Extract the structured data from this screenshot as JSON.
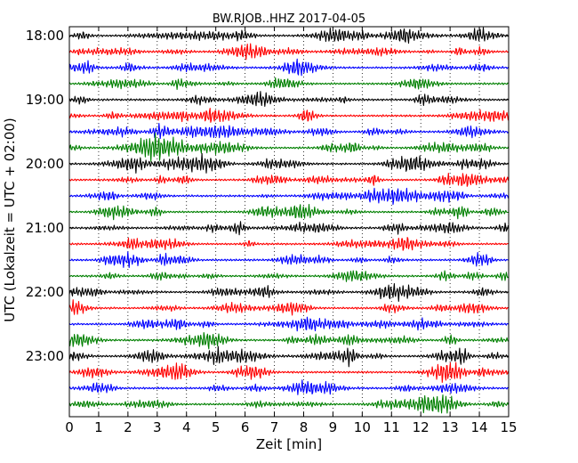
{
  "chart_data": {
    "type": "line",
    "title": "BW.RJOB..HHZ 2017-04-05",
    "xlabel": "Zeit  [min]",
    "ylabel": "UTC (Lokalzeit = UTC + 02:00)",
    "xlim": [
      0,
      15
    ],
    "x_ticks": [
      0,
      1,
      2,
      3,
      4,
      5,
      6,
      7,
      8,
      9,
      10,
      11,
      12,
      13,
      14,
      15
    ],
    "x_tick_labels": [
      "0",
      "1",
      "2",
      "3",
      "4",
      "5",
      "6",
      "7",
      "8",
      "9",
      "10",
      "11",
      "12",
      "13",
      "14",
      "15"
    ],
    "y_tick_labels": [
      "18:00",
      "19:00",
      "20:00",
      "21:00",
      "22:00",
      "23:00"
    ],
    "grid": "vertical dotted",
    "trace_start": "18:00",
    "trace_interval_minutes": 15,
    "trace_count": 24,
    "colors": [
      "#000000",
      "#ff0000",
      "#0000ff",
      "#008000"
    ]
  }
}
